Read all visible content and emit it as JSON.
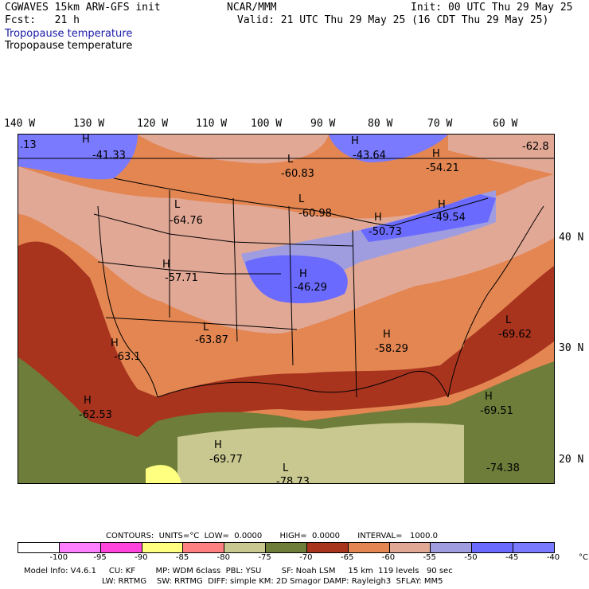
{
  "header": {
    "model": "CGWAVES 15km ARW-GFS init",
    "org": "NCAR/MMM",
    "init": "Init: 00 UTC Thu 29 May 25",
    "fcst": "Fcst:   21 h",
    "valid": "Valid: 21 UTC Thu 29 May 25 (16 CDT Thu 29 May 25)",
    "field_title_1": "Tropopause temperature",
    "field_title_2": "Tropopause temperature"
  },
  "longitudes": [
    "140 W",
    "130 W",
    "120 W",
    "110 W",
    "100 W",
    "90 W",
    "80 W",
    "70 W",
    "60 W"
  ],
  "latitudes": [
    "40 N",
    "30 N",
    "20 N"
  ],
  "map_labels": [
    {
      "sym": "",
      "value": "-41.33"
    },
    {
      "sym": "H",
      "value": "-43.64"
    },
    {
      "sym": "L",
      "value": "-60.83"
    },
    {
      "sym": "H",
      "value": "-54.21"
    },
    {
      "sym": "",
      "value": "-62.8"
    },
    {
      "sym": "L",
      "value": "-64.76"
    },
    {
      "sym": "L",
      "value": "-60.98"
    },
    {
      "sym": "H",
      "value": "-50.73"
    },
    {
      "sym": "H",
      "value": "-49.54"
    },
    {
      "sym": "H",
      "value": "-57.71"
    },
    {
      "sym": "H",
      "value": "-46.29"
    },
    {
      "sym": "L",
      "value": "-63.87"
    },
    {
      "sym": "H",
      "value": "-58.29"
    },
    {
      "sym": "L",
      "value": "-69.62"
    },
    {
      "sym": "H",
      "value": "-63.1"
    },
    {
      "sym": "H",
      "value": "-62.53"
    },
    {
      "sym": "H",
      "value": "-69.51"
    },
    {
      "sym": "H",
      "value": "-69.77"
    },
    {
      "sym": "L",
      "value": "-78.73"
    },
    {
      "sym": "",
      "value": "-74.38"
    },
    {
      "sym": "",
      "value": ".13"
    },
    {
      "sym": "H",
      "value": ""
    }
  ],
  "contour_info": "CONTOURS:  UNITS=°C  LOW=  0.0000       HIGH=  0.0000       INTERVAL=   1000.0",
  "colorbar": {
    "colors": [
      "#ffffff",
      "#ff80ff",
      "#ff44dd",
      "#ffff80",
      "#ff8080",
      "#c8c890",
      "#6f7d3a",
      "#a8341e",
      "#e38652",
      "#e2a896",
      "#9f9de0",
      "#6a6aff",
      "#7a7aff"
    ],
    "labels": [
      "-100",
      "-95",
      "-90",
      "-85",
      "-80",
      "-75",
      "-70",
      "-65",
      "-60",
      "-55",
      "-50",
      "-45",
      "-40",
      "°C"
    ]
  },
  "footer": {
    "line1": "Model Info: V4.6.1     CU: KF        MP: WDM 6class  PBL: YSU        SF: Noah LSM     15 km  119 levels   90 sec",
    "line2": "LW: RRTMG    SW: RRTMG  DIFF: simple KM: 2D Smagor DAMP: Rayleigh3  SFLAY: MM5"
  }
}
